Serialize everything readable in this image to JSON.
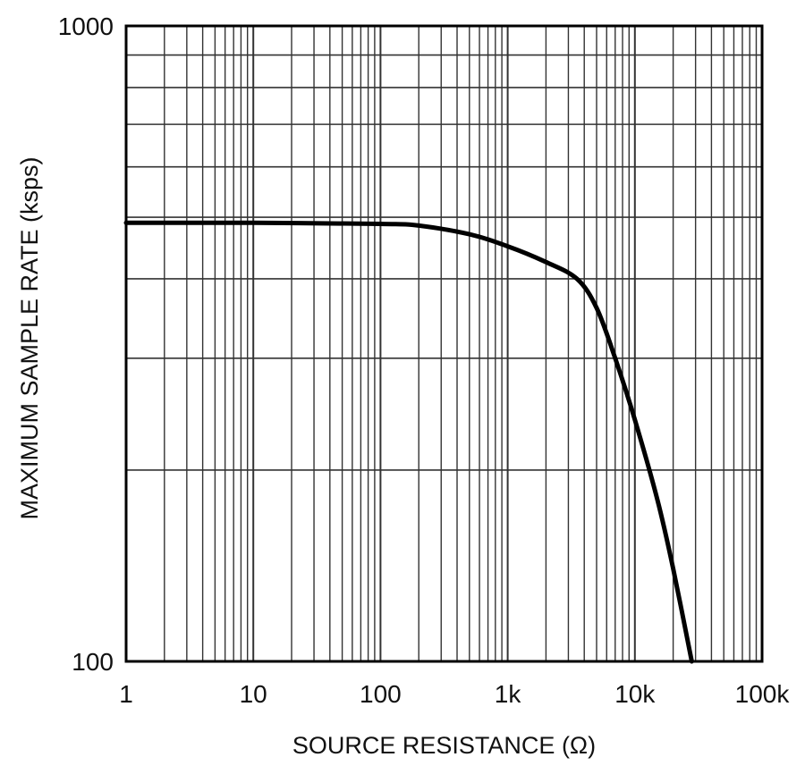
{
  "chart_data": {
    "type": "line",
    "title": "",
    "xlabel": "SOURCE RESISTANCE (Ω)",
    "ylabel": "MAXIMUM SAMPLE RATE (ksps)",
    "x_scale": "log",
    "y_scale": "log",
    "xlim": [
      1,
      100000
    ],
    "ylim": [
      100,
      1000
    ],
    "x_ticks": [
      1,
      10,
      100,
      1000,
      10000,
      100000
    ],
    "x_tick_labels": [
      "1",
      "10",
      "100",
      "1k",
      "10k",
      "100k"
    ],
    "y_ticks": [
      100,
      1000
    ],
    "y_tick_labels": [
      "100",
      "1000"
    ],
    "grid": true,
    "legend": "none",
    "line_color": "#000000",
    "grid_color": "#333333",
    "series": [
      {
        "x": [
          1,
          10,
          100,
          200,
          500,
          1000,
          2000,
          3500,
          5000,
          7000,
          10000,
          15000,
          20000,
          28000
        ],
        "y": [
          490,
          490,
          488,
          485,
          470,
          450,
          425,
          400,
          360,
          300,
          240,
          180,
          140,
          100
        ]
      }
    ]
  }
}
